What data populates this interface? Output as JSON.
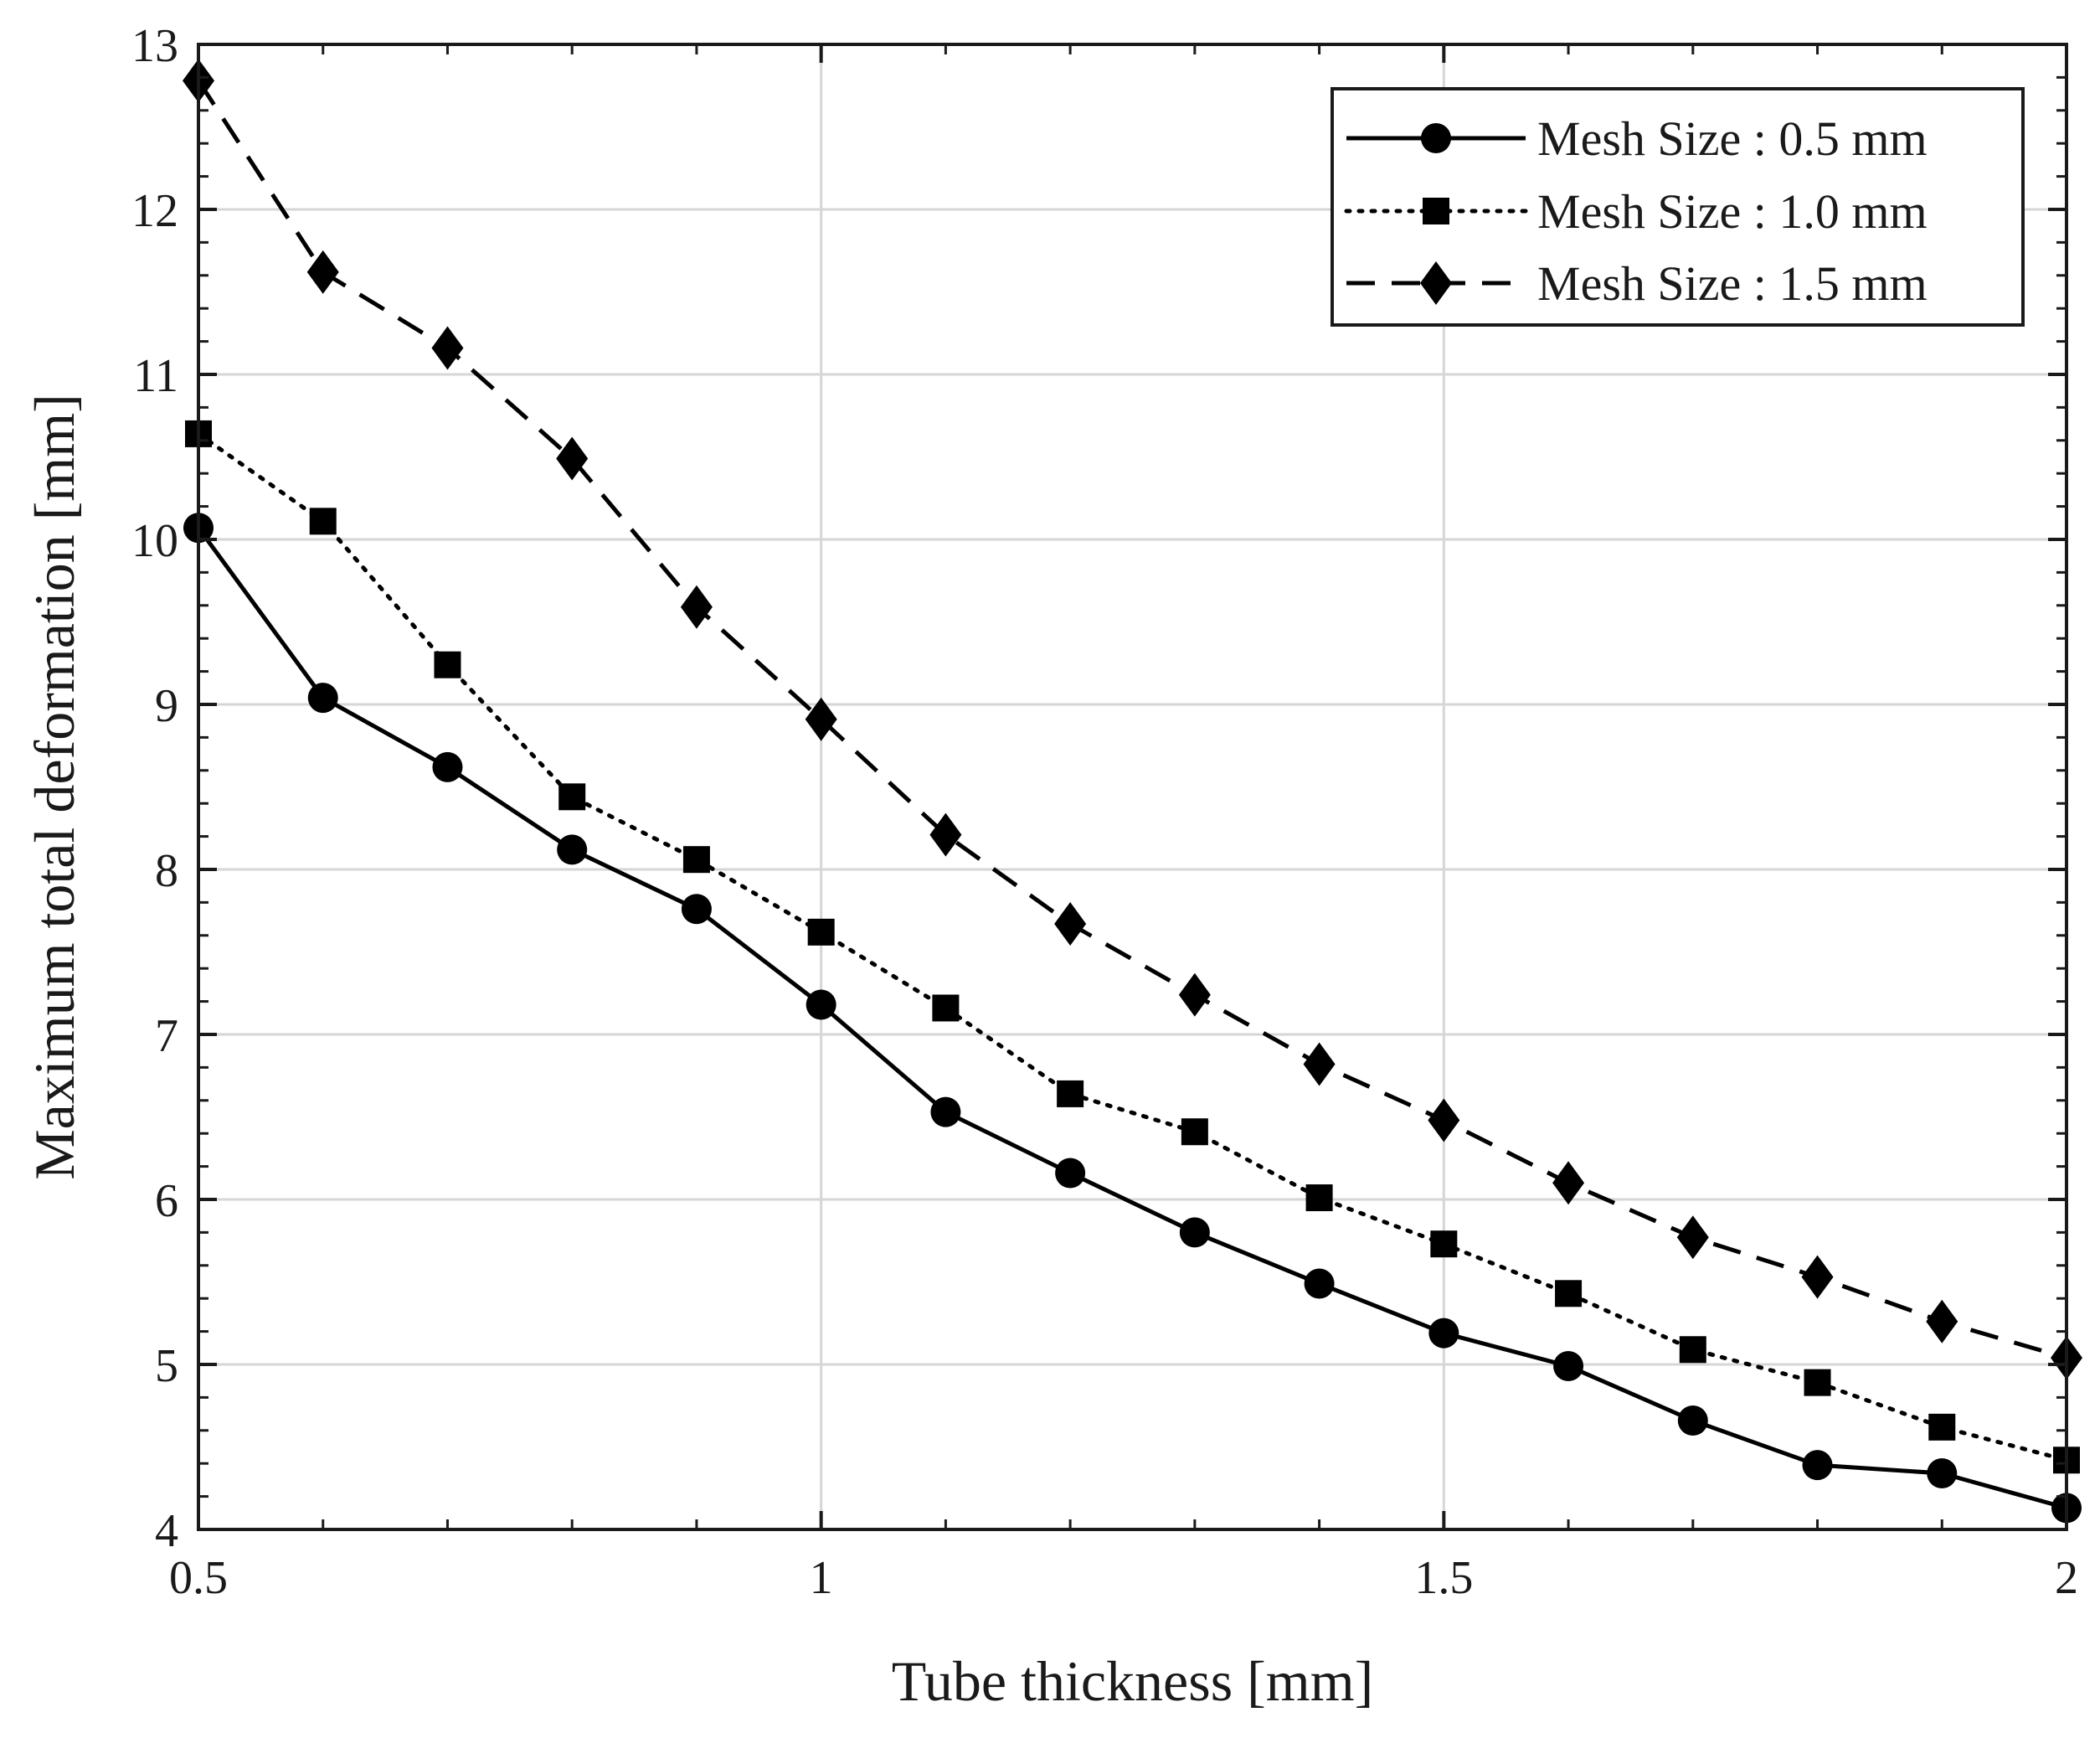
{
  "chart_data": {
    "type": "line",
    "xlabel": "Tube thickness [mm]",
    "ylabel": "Maximum total deformation [mm]",
    "xlim": [
      0.5,
      2
    ],
    "ylim": [
      4,
      13
    ],
    "xticks": [
      0.5,
      1,
      1.5,
      2
    ],
    "xtick_labels": [
      "0.5",
      "1",
      "1.5",
      "2"
    ],
    "yticks": [
      4,
      5,
      6,
      7,
      8,
      9,
      10,
      11,
      12,
      13
    ],
    "ytick_labels": [
      "4",
      "5",
      "6",
      "7",
      "8",
      "9",
      "10",
      "11",
      "12",
      "13"
    ],
    "grid": true,
    "legend_position": "top-right",
    "x": [
      0.5,
      0.6,
      0.7,
      0.8,
      0.9,
      1.0,
      1.1,
      1.2,
      1.3,
      1.4,
      1.5,
      1.6,
      1.7,
      1.8,
      1.9,
      2.0
    ],
    "series": [
      {
        "name": "Mesh Size : 0.5 mm",
        "marker": "circle",
        "line_style": "solid",
        "color": "#000000",
        "values": [
          10.07,
          9.04,
          8.62,
          8.12,
          7.76,
          7.18,
          6.53,
          6.16,
          5.8,
          5.49,
          5.19,
          4.99,
          4.66,
          4.39,
          4.34,
          4.13
        ]
      },
      {
        "name": "Mesh Size : 1.0 mm",
        "marker": "square",
        "line_style": "dotted",
        "color": "#000000",
        "values": [
          10.64,
          10.11,
          9.24,
          8.44,
          8.06,
          7.62,
          7.16,
          6.64,
          6.41,
          6.01,
          5.73,
          5.43,
          5.09,
          4.89,
          4.62,
          4.42
        ]
      },
      {
        "name": "Mesh Size : 1.5 mm",
        "marker": "diamond",
        "line_style": "dashed",
        "color": "#000000",
        "values": [
          12.78,
          11.62,
          11.16,
          10.49,
          9.59,
          8.91,
          8.21,
          7.67,
          7.24,
          6.82,
          6.48,
          6.1,
          5.77,
          5.53,
          5.26,
          5.04
        ]
      }
    ]
  }
}
